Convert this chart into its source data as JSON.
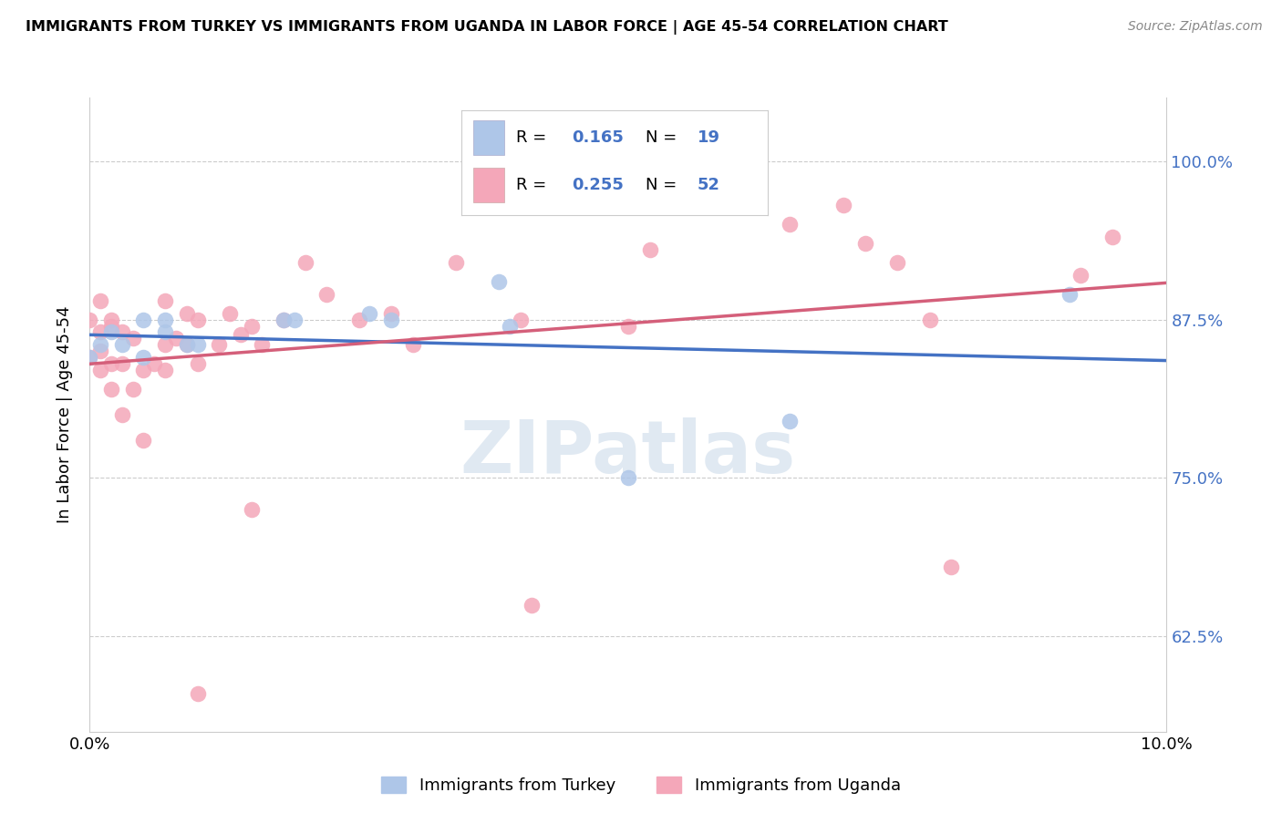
{
  "title": "IMMIGRANTS FROM TURKEY VS IMMIGRANTS FROM UGANDA IN LABOR FORCE | AGE 45-54 CORRELATION CHART",
  "source": "Source: ZipAtlas.com",
  "ylabel": "In Labor Force | Age 45-54",
  "yticks": [
    0.625,
    0.75,
    0.875,
    1.0
  ],
  "ytick_labels": [
    "62.5%",
    "75.0%",
    "87.5%",
    "100.0%"
  ],
  "xlim": [
    0.0,
    0.1
  ],
  "ylim": [
    0.55,
    1.05
  ],
  "turkey_R": "0.165",
  "turkey_N": "19",
  "uganda_R": "0.255",
  "uganda_N": "52",
  "turkey_color": "#aec6e8",
  "uganda_color": "#f4a7b9",
  "turkey_line_color": "#4472c4",
  "uganda_line_color": "#d45f7a",
  "watermark": "ZIPatlas",
  "turkey_x": [
    0.0,
    0.001,
    0.002,
    0.003,
    0.005,
    0.005,
    0.007,
    0.007,
    0.009,
    0.01,
    0.018,
    0.019,
    0.026,
    0.028,
    0.038,
    0.039,
    0.05,
    0.065,
    0.091
  ],
  "turkey_y": [
    0.845,
    0.855,
    0.865,
    0.855,
    0.875,
    0.845,
    0.865,
    0.875,
    0.855,
    0.855,
    0.875,
    0.875,
    0.88,
    0.875,
    0.905,
    0.87,
    0.75,
    0.795,
    0.895
  ],
  "uganda_x": [
    0.0,
    0.0,
    0.001,
    0.001,
    0.001,
    0.001,
    0.002,
    0.002,
    0.002,
    0.002,
    0.003,
    0.003,
    0.003,
    0.004,
    0.004,
    0.005,
    0.005,
    0.006,
    0.007,
    0.007,
    0.007,
    0.008,
    0.009,
    0.009,
    0.01,
    0.01,
    0.012,
    0.013,
    0.015,
    0.015,
    0.016,
    0.018,
    0.02,
    0.022,
    0.025,
    0.028,
    0.03,
    0.034,
    0.04,
    0.041,
    0.05,
    0.052,
    0.065,
    0.07,
    0.072,
    0.075,
    0.078,
    0.08,
    0.092,
    0.095,
    0.01,
    0.014
  ],
  "uganda_y": [
    0.845,
    0.875,
    0.835,
    0.85,
    0.865,
    0.89,
    0.82,
    0.84,
    0.87,
    0.875,
    0.8,
    0.84,
    0.865,
    0.82,
    0.86,
    0.78,
    0.835,
    0.84,
    0.835,
    0.855,
    0.89,
    0.86,
    0.855,
    0.88,
    0.84,
    0.875,
    0.855,
    0.88,
    0.725,
    0.87,
    0.855,
    0.875,
    0.92,
    0.895,
    0.875,
    0.88,
    0.855,
    0.92,
    0.875,
    0.65,
    0.87,
    0.93,
    0.95,
    0.965,
    0.935,
    0.92,
    0.875,
    0.68,
    0.91,
    0.94,
    0.58,
    0.863
  ]
}
